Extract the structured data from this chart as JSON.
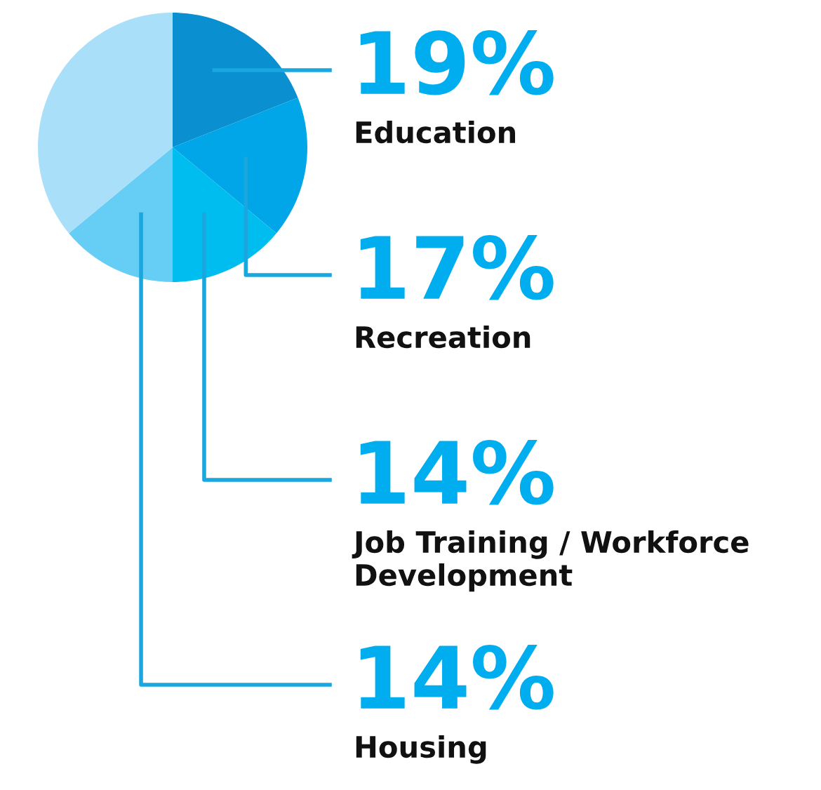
{
  "chart_data": {
    "type": "pie",
    "categories": [
      "Education",
      "Recreation",
      "Job Training / Workforce Development",
      "Housing",
      null
    ],
    "values": [
      19,
      17,
      14,
      14,
      36
    ],
    "colors": [
      "#0a8fd0",
      "#00a6e8",
      "#00bdf0",
      "#66cef5",
      "#aadffa"
    ],
    "value_labels": [
      "19%",
      "17%",
      "14%",
      "14%",
      null
    ]
  }
}
